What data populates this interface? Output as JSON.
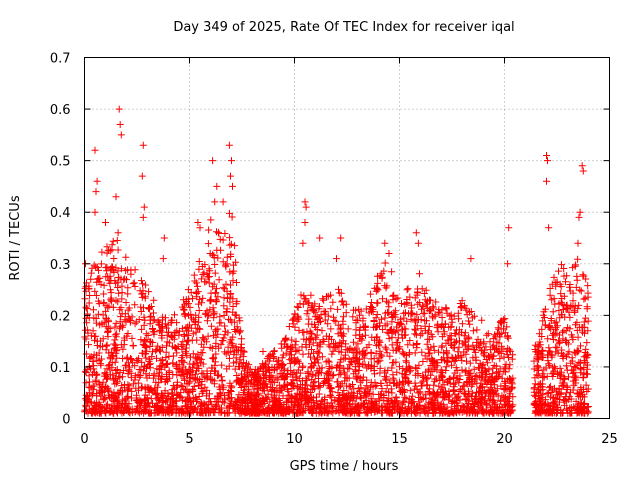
{
  "chart_data": {
    "type": "scatter",
    "title": "Day 349 of 2025, Rate Of TEC Index for receiver iqal",
    "xlabel": "GPS time / hours",
    "ylabel": "ROTI / TECUs",
    "xlim": [
      0,
      25
    ],
    "ylim": [
      0,
      0.7
    ],
    "xticks": [
      0,
      5,
      10,
      15,
      20,
      25
    ],
    "xtick_labels": [
      "0",
      "5",
      "10",
      "15",
      "20",
      "25"
    ],
    "yticks": [
      0,
      0.1,
      0.2,
      0.3,
      0.4,
      0.5,
      0.6,
      0.7
    ],
    "ytick_labels": [
      "0",
      "0.1",
      "0.2",
      "0.3",
      "0.4",
      "0.5",
      "0.6",
      "0.7"
    ],
    "grid": true,
    "marker": "+",
    "color": "#ff0000",
    "gap_hours": [
      20.4,
      21.4
    ],
    "x_end": 24.0,
    "envelope": {
      "x": [
        0,
        0.5,
        1.0,
        1.5,
        2.0,
        2.5,
        3.0,
        3.5,
        4.0,
        4.5,
        5.0,
        5.5,
        6.0,
        6.5,
        7.0,
        7.5,
        8.0,
        8.5,
        9.0,
        9.5,
        10.0,
        10.5,
        11.0,
        11.5,
        12.0,
        12.5,
        13.0,
        13.5,
        14.0,
        14.5,
        15.0,
        15.5,
        16.0,
        16.5,
        17.0,
        17.5,
        18.0,
        18.5,
        19.0,
        19.5,
        20.0,
        20.3,
        21.5,
        22.0,
        22.5,
        23.0,
        23.5,
        24.0
      ],
      "y": [
        0.25,
        0.3,
        0.32,
        0.35,
        0.3,
        0.28,
        0.25,
        0.2,
        0.18,
        0.2,
        0.25,
        0.3,
        0.38,
        0.35,
        0.4,
        0.15,
        0.08,
        0.1,
        0.12,
        0.14,
        0.2,
        0.25,
        0.22,
        0.23,
        0.25,
        0.22,
        0.2,
        0.22,
        0.28,
        0.3,
        0.22,
        0.25,
        0.28,
        0.22,
        0.22,
        0.2,
        0.22,
        0.2,
        0.18,
        0.15,
        0.2,
        0.12,
        0.15,
        0.22,
        0.3,
        0.28,
        0.3,
        0.25
      ]
    },
    "outliers": [
      {
        "x": 0.05,
        "y": 0.3
      },
      {
        "x": 0.5,
        "y": 0.52
      },
      {
        "x": 0.6,
        "y": 0.46
      },
      {
        "x": 0.55,
        "y": 0.44
      },
      {
        "x": 0.5,
        "y": 0.4
      },
      {
        "x": 1.0,
        "y": 0.38
      },
      {
        "x": 1.5,
        "y": 0.43
      },
      {
        "x": 1.65,
        "y": 0.6
      },
      {
        "x": 1.7,
        "y": 0.57
      },
      {
        "x": 1.75,
        "y": 0.55
      },
      {
        "x": 1.6,
        "y": 0.36
      },
      {
        "x": 2.8,
        "y": 0.53
      },
      {
        "x": 2.75,
        "y": 0.47
      },
      {
        "x": 2.85,
        "y": 0.41
      },
      {
        "x": 2.8,
        "y": 0.39
      },
      {
        "x": 3.8,
        "y": 0.35
      },
      {
        "x": 3.75,
        "y": 0.31
      },
      {
        "x": 5.4,
        "y": 0.38
      },
      {
        "x": 5.5,
        "y": 0.37
      },
      {
        "x": 6.1,
        "y": 0.5
      },
      {
        "x": 6.3,
        "y": 0.45
      },
      {
        "x": 6.2,
        "y": 0.42
      },
      {
        "x": 6.6,
        "y": 0.42
      },
      {
        "x": 6.9,
        "y": 0.53
      },
      {
        "x": 7.0,
        "y": 0.5
      },
      {
        "x": 6.95,
        "y": 0.47
      },
      {
        "x": 7.05,
        "y": 0.45
      },
      {
        "x": 10.5,
        "y": 0.42
      },
      {
        "x": 10.55,
        "y": 0.41
      },
      {
        "x": 10.5,
        "y": 0.38
      },
      {
        "x": 10.4,
        "y": 0.34
      },
      {
        "x": 11.2,
        "y": 0.35
      },
      {
        "x": 12.0,
        "y": 0.31
      },
      {
        "x": 12.2,
        "y": 0.35
      },
      {
        "x": 14.3,
        "y": 0.34
      },
      {
        "x": 14.5,
        "y": 0.32
      },
      {
        "x": 15.8,
        "y": 0.36
      },
      {
        "x": 15.9,
        "y": 0.34
      },
      {
        "x": 18.4,
        "y": 0.31
      },
      {
        "x": 20.2,
        "y": 0.37
      },
      {
        "x": 20.15,
        "y": 0.3
      },
      {
        "x": 22.0,
        "y": 0.51
      },
      {
        "x": 22.05,
        "y": 0.5
      },
      {
        "x": 22.0,
        "y": 0.46
      },
      {
        "x": 22.1,
        "y": 0.37
      },
      {
        "x": 23.7,
        "y": 0.49
      },
      {
        "x": 23.75,
        "y": 0.48
      },
      {
        "x": 23.6,
        "y": 0.4
      },
      {
        "x": 23.55,
        "y": 0.39
      },
      {
        "x": 23.5,
        "y": 0.34
      },
      {
        "x": 8.5,
        "y": 0.13
      },
      {
        "x": 9.0,
        "y": 0.12
      }
    ]
  }
}
